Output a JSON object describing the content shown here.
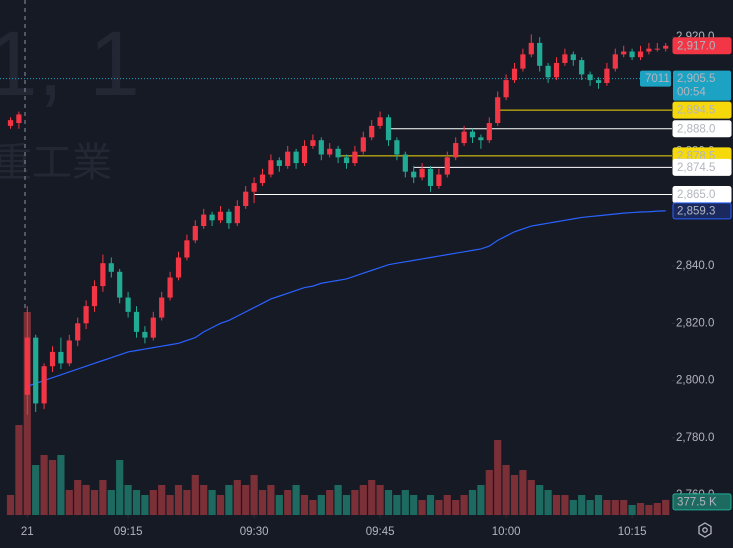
{
  "chart_data": {
    "type": "candlestick",
    "watermark": [
      "1, 1",
      "重工業"
    ],
    "x": [
      1,
      2,
      3,
      4,
      5,
      6,
      7,
      8,
      9,
      10,
      11,
      12,
      13,
      14,
      15,
      16,
      17,
      18,
      19,
      20,
      21,
      22,
      23,
      24,
      25,
      26,
      27,
      28,
      29,
      30,
      31,
      32,
      33,
      34,
      35,
      36,
      37,
      38,
      39,
      40,
      41,
      42,
      43,
      44,
      45,
      46,
      47,
      48,
      49,
      50,
      51,
      52,
      53,
      54,
      55,
      56,
      57,
      58,
      59,
      60,
      61,
      62,
      63,
      64,
      65,
      66,
      67,
      68,
      69,
      70,
      71,
      72,
      73,
      74,
      75,
      76,
      77,
      78,
      79
    ],
    "open": [
      2889,
      2890,
      2795,
      2815,
      2792,
      2805,
      2810,
      2806,
      2814,
      2820,
      2826,
      2833,
      2841,
      2838,
      2829,
      2824,
      2817,
      2815,
      2822,
      2829,
      2836,
      2843,
      2849,
      2854,
      2858,
      2856,
      2859,
      2855,
      2861,
      2866,
      2869,
      2872,
      2877,
      2875,
      2880,
      2876,
      2882,
      2884,
      2879,
      2881,
      2878,
      2876,
      2880,
      2885,
      2889,
      2892,
      2884,
      2879,
      2873,
      2871,
      2874,
      2868,
      2872,
      2878,
      2883,
      2887,
      2885,
      2884,
      2890,
      2899,
      2905,
      2909,
      2914,
      2918,
      2910,
      2906,
      2911,
      2914,
      2912,
      2907,
      2905,
      2904,
      2909,
      2914,
      2915,
      2913,
      2915,
      2916,
      2916
    ],
    "high": [
      2892,
      2894,
      2826,
      2816,
      2806,
      2812,
      2815,
      2816,
      2822,
      2828,
      2835,
      2844,
      2843,
      2839,
      2831,
      2826,
      2819,
      2824,
      2831,
      2838,
      2845,
      2851,
      2856,
      2860,
      2859,
      2861,
      2860,
      2863,
      2868,
      2871,
      2874,
      2879,
      2878,
      2882,
      2881,
      2884,
      2886,
      2885,
      2883,
      2882,
      2879,
      2882,
      2887,
      2891,
      2894,
      2893,
      2885,
      2880,
      2875,
      2876,
      2875,
      2874,
      2880,
      2885,
      2889,
      2888,
      2886,
      2892,
      2901,
      2907,
      2911,
      2916,
      2921,
      2920,
      2911,
      2913,
      2916,
      2915,
      2913,
      2908,
      2906,
      2911,
      2916,
      2917,
      2916,
      2917,
      2918,
      2918,
      2918
    ],
    "low": [
      2888,
      2888,
      2788,
      2789,
      2790,
      2803,
      2804,
      2805,
      2812,
      2818,
      2824,
      2831,
      2836,
      2827,
      2822,
      2815,
      2813,
      2814,
      2821,
      2828,
      2835,
      2842,
      2848,
      2853,
      2854,
      2855,
      2853,
      2854,
      2860,
      2862,
      2868,
      2871,
      2873,
      2874,
      2874,
      2875,
      2881,
      2877,
      2878,
      2876,
      2874,
      2875,
      2879,
      2884,
      2888,
      2882,
      2877,
      2871,
      2869,
      2870,
      2866,
      2867,
      2871,
      2877,
      2882,
      2883,
      2881,
      2883,
      2889,
      2898,
      2904,
      2908,
      2913,
      2908,
      2904,
      2905,
      2910,
      2910,
      2905,
      2903,
      2902,
      2903,
      2908,
      2913,
      2912,
      2912,
      2914,
      2915,
      2915
    ],
    "close": [
      2891,
      2893,
      2815,
      2792,
      2805,
      2810,
      2806,
      2814,
      2820,
      2826,
      2833,
      2841,
      2838,
      2829,
      2824,
      2817,
      2815,
      2822,
      2829,
      2836,
      2843,
      2849,
      2854,
      2858,
      2856,
      2859,
      2855,
      2861,
      2866,
      2869,
      2872,
      2877,
      2875,
      2880,
      2876,
      2882,
      2884,
      2879,
      2881,
      2878,
      2876,
      2880,
      2885,
      2889,
      2892,
      2884,
      2879,
      2873,
      2871,
      2874,
      2868,
      2872,
      2878,
      2883,
      2887,
      2885,
      2884,
      2890,
      2899,
      2905,
      2909,
      2914,
      2918,
      2910,
      2906,
      2911,
      2914,
      2912,
      2907,
      2905,
      2904,
      2909,
      2914,
      2915,
      2913,
      2915,
      2916,
      2916,
      2917
    ],
    "volume": [
      500,
      2250,
      5075,
      1250,
      1500,
      1375,
      1500,
      625,
      875,
      750,
      625,
      875,
      625,
      1375,
      750,
      625,
      500,
      625,
      750,
      500,
      750,
      625,
      1000,
      750,
      625,
      500,
      750,
      875,
      750,
      1000,
      625,
      750,
      500,
      625,
      750,
      500,
      375,
      500,
      625,
      750,
      500,
      625,
      750,
      875,
      750,
      625,
      500,
      625,
      500,
      375,
      500,
      375,
      500,
      375,
      500,
      625,
      750,
      1125,
      1875,
      1250,
      1000,
      1125,
      875,
      750,
      625,
      500,
      500,
      375,
      500,
      375,
      500,
      375,
      375,
      375,
      250,
      300,
      250,
      300,
      377.5
    ],
    "vwap": [
      null,
      null,
      2798,
      2799,
      2800,
      2801,
      2802,
      2803,
      2804,
      2805,
      2806,
      2807,
      2808,
      2809,
      2810,
      2810.5,
      2811,
      2811.5,
      2812,
      2812.5,
      2813,
      2814,
      2815,
      2817,
      2818.5,
      2820,
      2821,
      2822.5,
      2824,
      2825.5,
      2827,
      2828.5,
      2829.5,
      2830.5,
      2831.5,
      2832.5,
      2833,
      2834,
      2834.5,
      2835,
      2835.5,
      2836.5,
      2837.5,
      2838.5,
      2839.5,
      2840.5,
      2841,
      2841.5,
      2842,
      2842.5,
      2843,
      2843.5,
      2844,
      2844.5,
      2845,
      2845.5,
      2846,
      2847,
      2849,
      2850.5,
      2852,
      2853,
      2854,
      2854.5,
      2855,
      2855.5,
      2856,
      2856.5,
      2857,
      2857.3,
      2857.6,
      2857.9,
      2858.2,
      2858.5,
      2858.7,
      2858.9,
      2859.0,
      2859.2,
      2859.3
    ],
    "up_color": "#f23645",
    "down_color": "#22ab94",
    "up_volume_color": "#7b2f36",
    "down_volume_color": "#1d6b60",
    "vwap_color": "#2962ff",
    "last_close_label": "2,917.0",
    "vwap_last_label": "2,859.3",
    "volume_last_label": "377.5 K",
    "marker": {
      "value": 2905.5,
      "label": "2,905.5",
      "countdown": "00:54",
      "symbol": "7011",
      "color": "#1ca3c4"
    },
    "price_lines": [
      {
        "value": 2894.5,
        "label": "2,894.5",
        "color": "#f5d90a",
        "from": 59
      },
      {
        "value": 2888.0,
        "label": "2,888.0",
        "color": "#ffffff",
        "from": 46
      },
      {
        "value": 2878.5,
        "label": "2,878.5",
        "color": "#f5d90a",
        "from": 40
      },
      {
        "value": 2874.5,
        "label": "2,874.5",
        "color": "#ffffff",
        "from": 49
      },
      {
        "value": 2865.0,
        "label": "2,865.0",
        "color": "#ffffff",
        "from": 30
      }
    ],
    "xlim": [
      -0.25,
      79.75
    ],
    "xticks": [
      {
        "value": 3,
        "label": "21"
      },
      {
        "value": 15,
        "label": "09:15"
      },
      {
        "value": 30,
        "label": "09:30"
      },
      {
        "value": 45,
        "label": "09:45"
      },
      {
        "value": 60,
        "label": "10:00"
      },
      {
        "value": 75,
        "label": "10:15"
      }
    ],
    "ylim": [
      2753,
      2933
    ],
    "yticks": [
      {
        "value": 2920,
        "label": "2,920.0"
      },
      {
        "value": 2880,
        "label": "2,880.0"
      },
      {
        "value": 2840,
        "label": "2,840.0"
      },
      {
        "value": 2820,
        "label": "2,820.0"
      },
      {
        "value": 2800,
        "label": "2,800.0"
      },
      {
        "value": 2780,
        "label": "2,780.0"
      },
      {
        "value": 2760,
        "label": "2,760.0"
      }
    ],
    "y2lim": [
      0,
      12875
    ]
  }
}
